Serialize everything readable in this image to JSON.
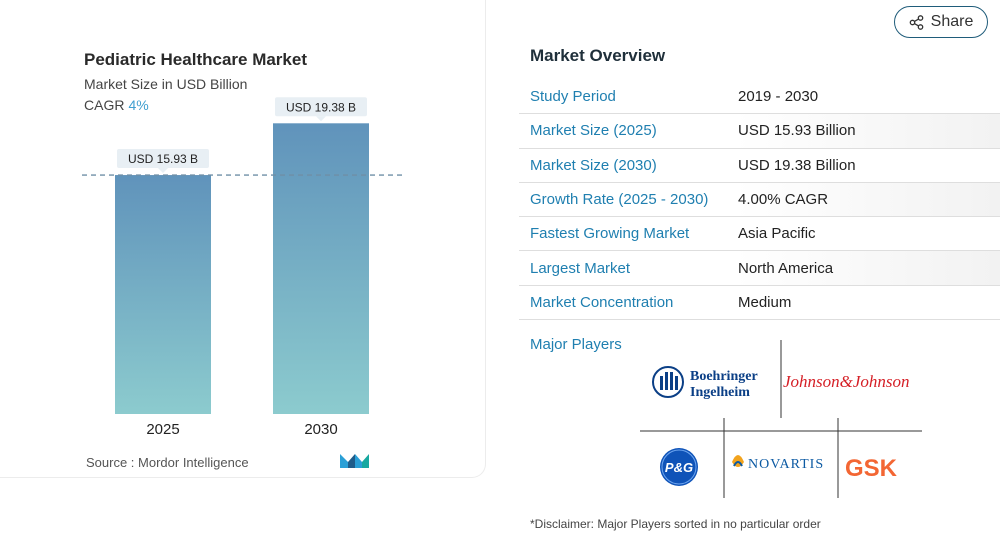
{
  "chart_data": {
    "type": "bar",
    "title": "Pediatric Healthcare Market",
    "subtitle": "Market Size in USD Billion",
    "cagr_label": "CAGR",
    "cagr_value": "4%",
    "categories": [
      "2025",
      "2030"
    ],
    "values": [
      15.93,
      19.38
    ],
    "data_labels": [
      "USD 15.93 B",
      "USD 19.38 B"
    ],
    "ylim": [
      0,
      20
    ],
    "reference_line": 15.93,
    "bar_gradient": [
      "#6093bb",
      "#8ccbce"
    ],
    "xlabel": "",
    "ylabel": ""
  },
  "source": "Source :  Mordor Intelligence",
  "share": {
    "label": "Share",
    "icon": "share-icon"
  },
  "overview": {
    "title": "Market Overview",
    "rows": [
      {
        "key": "Study Period",
        "value": "2019 - 2030"
      },
      {
        "key": "Market Size (2025)",
        "value": "USD 15.93 Billion"
      },
      {
        "key": "Market Size (2030)",
        "value": "USD 19.38 Billion"
      },
      {
        "key": "Growth Rate (2025 - 2030)",
        "value": "4.00% CAGR"
      },
      {
        "key": "Fastest Growing Market",
        "value": "Asia Pacific"
      },
      {
        "key": "Largest Market",
        "value": "North America"
      },
      {
        "key": "Market Concentration",
        "value": "Medium"
      }
    ]
  },
  "major_players": {
    "label": "Major Players",
    "logos": [
      "Boehringer Ingelheim",
      "Johnson&Johnson",
      "P&G",
      "NOVARTIS",
      "GSK"
    ]
  },
  "disclaimer": "*Disclaimer: Major Players sorted in no particular order",
  "colors": {
    "accent": "#1f7fb0",
    "cagr": "#3f9fd0",
    "label_bg": "#e8eff4"
  }
}
